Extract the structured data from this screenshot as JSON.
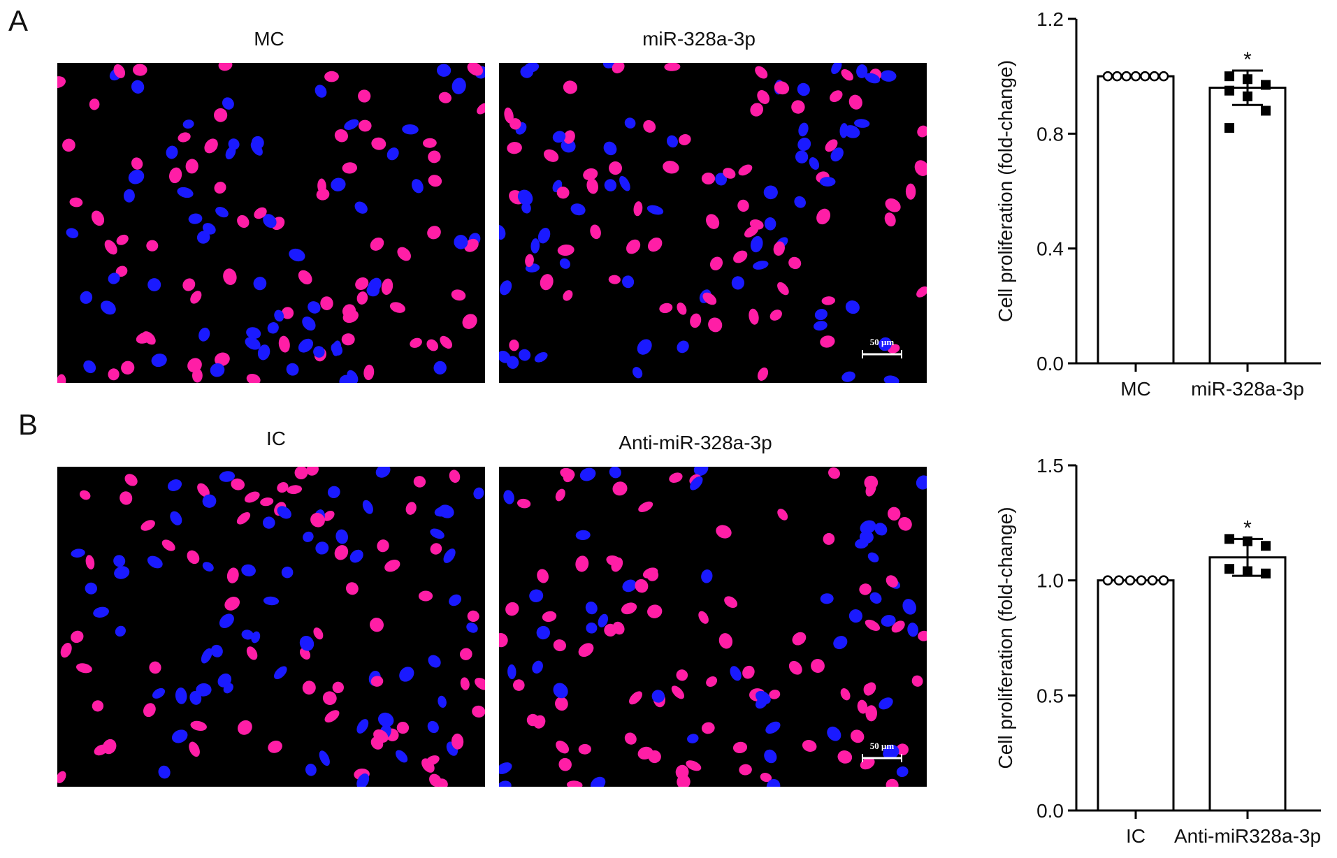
{
  "figure": {
    "panel_A": {
      "letter": "A",
      "image_titles": [
        "MC",
        "miR-328a-3p"
      ],
      "scale_bar": "50 μm"
    },
    "panel_B": {
      "letter": "B",
      "image_titles": [
        "IC",
        "Anti-miR-328a-3p"
      ],
      "scale_bar": "50 μm"
    }
  },
  "colors": {
    "magenta": "#ff1ea6",
    "blue": "#1a1aff",
    "background": "#000000"
  },
  "chart_data": [
    {
      "type": "bar",
      "panel": "A",
      "categories": [
        "MC",
        "miR-328a-3p"
      ],
      "values": [
        1.0,
        0.96
      ],
      "error": [
        0.0,
        0.06
      ],
      "points": [
        [
          1.0,
          1.0,
          1.0,
          1.0,
          1.0,
          1.0,
          1.0
        ],
        [
          1.0,
          0.99,
          0.97,
          0.95,
          0.93,
          0.88,
          0.82
        ]
      ],
      "significance": [
        "",
        "*"
      ],
      "ylabel": "Cell proliferation (fold-change)",
      "ylim": [
        0,
        1.2
      ],
      "yticks": [
        "0.0",
        "0.4",
        "0.8",
        "1.2"
      ],
      "yticks_values": [
        0,
        0.4,
        0.8,
        1.2
      ]
    },
    {
      "type": "bar",
      "panel": "B",
      "categories": [
        "IC",
        "Anti-miR328a-3p"
      ],
      "values": [
        1.0,
        1.1
      ],
      "error": [
        0.0,
        0.08
      ],
      "points": [
        [
          1.0,
          1.0,
          1.0,
          1.0,
          1.0,
          1.0
        ],
        [
          1.18,
          1.17,
          1.15,
          1.05,
          1.04,
          1.03
        ]
      ],
      "significance": [
        "",
        "*"
      ],
      "ylabel": "Cell proliferation (fold-change)",
      "ylim": [
        0,
        1.5
      ],
      "yticks": [
        "0.0",
        "0.5",
        "1.0",
        "1.5"
      ],
      "yticks_values": [
        0,
        0.5,
        1.0,
        1.5
      ]
    }
  ]
}
